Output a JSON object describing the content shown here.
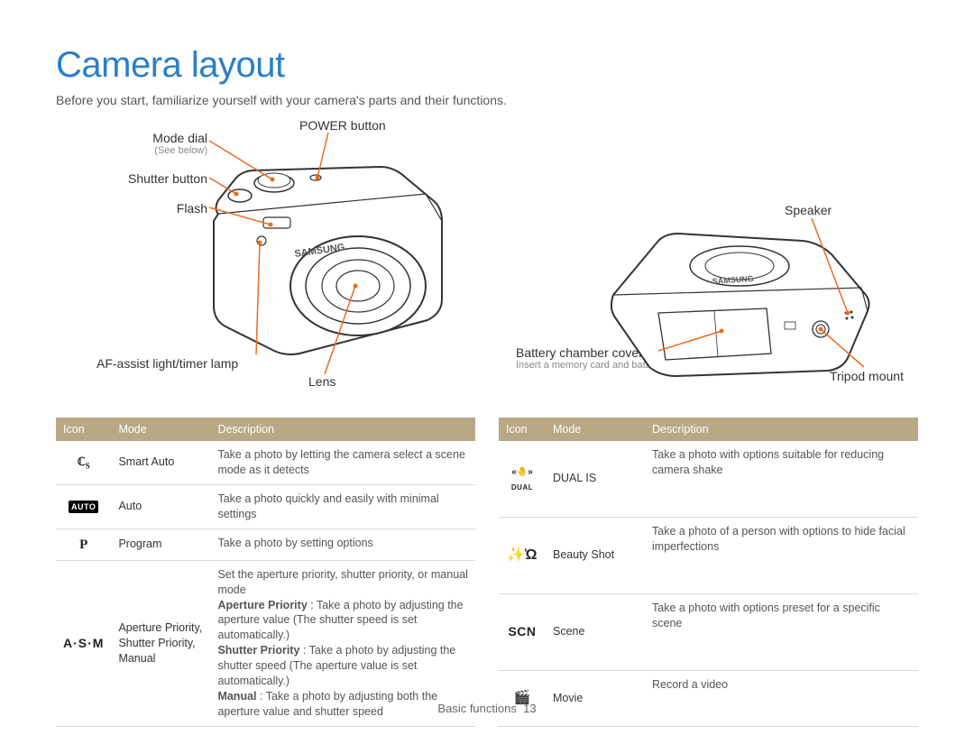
{
  "title": "Camera layout",
  "subtitle": "Before you start, familiarize yourself with your camera's parts and their functions.",
  "colors": {
    "title": "#2a7fc9",
    "header_bg": "#b9a884",
    "header_fg": "#ffffff",
    "leader": "#e86c1f",
    "border": "#d8d8d8"
  },
  "labels_front": {
    "mode_dial": "Mode dial",
    "mode_dial_sub": "(See below)",
    "power": "POWER button",
    "shutter": "Shutter button",
    "flash": "Flash",
    "af": "AF-assist light/timer lamp",
    "lens": "Lens"
  },
  "labels_bottom": {
    "speaker": "Speaker",
    "battery": "Battery chamber cover",
    "battery_sub": "Insert a memory card and battery",
    "tripod": "Tripod mount"
  },
  "table_headers": {
    "icon": "Icon",
    "mode": "Mode",
    "desc": "Description"
  },
  "table_left": [
    {
      "icon_html": "<span style='font-family:Georgia'>ℂ<sub style='font-size:9px'>S</sub></span>",
      "mode": "Smart Auto",
      "desc": "Take a photo by letting the camera select a scene mode as it detects"
    },
    {
      "icon_html": "<span class='auto-box'>AUTO</span>",
      "mode": "Auto",
      "desc": "Take a photo quickly and easily with minimal settings"
    },
    {
      "icon_html": "<b style='font-family:Georgia;font-size:15px'>P</b>",
      "mode": "Program",
      "desc": "Take a photo by setting options"
    },
    {
      "icon_html": "<b style='font-size:14px;letter-spacing:1px'>A·S·M</b>",
      "mode": "Aperture Priority, Shutter Priority, Manual",
      "desc": "Set the aperture priority, shutter priority, or manual mode<br><b>Aperture Priority</b> : Take a photo by adjusting the aperture value (The shutter speed is set automatically.)<br><b>Shutter Priority</b> : Take a photo by adjusting the shutter speed (The aperture value is set automatically.)<br><b>Manual</b> : Take a photo by adjusting both the aperture value and shutter speed"
    }
  ],
  "table_right": [
    {
      "icon_html": "<span style='font-size:10px'>«🤚»<br><span style=\"font-size:8px;letter-spacing:0.5px\">DUAL</span></span>",
      "mode": "DUAL IS",
      "desc": "Take a photo with options suitable for reducing camera shake"
    },
    {
      "icon_html": "<span style='font-size:16px'>✨Ὠ</span>",
      "mode": "Beauty Shot",
      "desc": "Take a photo of a person with options to hide facial imperfections"
    },
    {
      "icon_html": "<b style='font-size:14px;letter-spacing:0.5px'>SCN</b>",
      "mode": "Scene",
      "desc": "Take a photo with options preset for a specific scene"
    },
    {
      "icon_html": "<span style='font-size:15px'>🎬</span>",
      "mode": "Movie",
      "desc": "Record a video"
    }
  ],
  "footer": {
    "section": "Basic functions",
    "page": "13"
  }
}
